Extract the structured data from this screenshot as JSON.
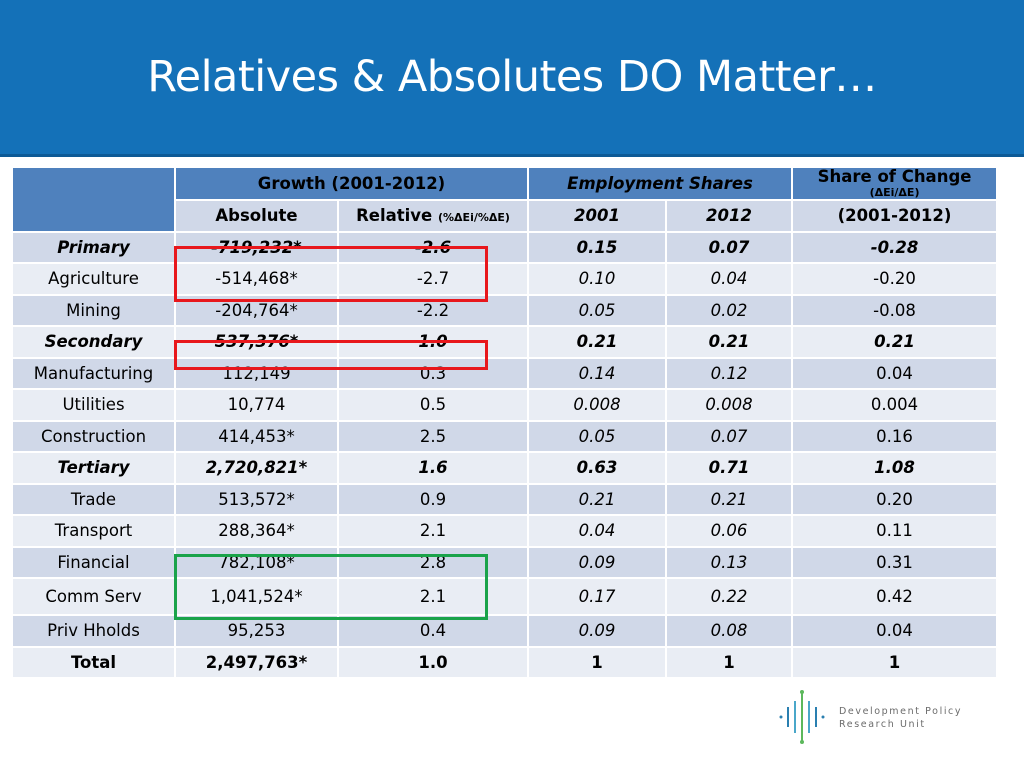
{
  "slide": {
    "title": "Relatives & Absolutes DO Matter…"
  },
  "table": {
    "header_top": {
      "growth": "Growth (2001-2012)",
      "employment_shares": "Employment Shares",
      "share_of_change": "Share of Change",
      "share_of_change_sub": "(ΔEi/ΔE)"
    },
    "header_sub": {
      "absolute": "Absolute",
      "relative": "Relative",
      "relative_formula": "(%ΔEi/%ΔE)",
      "y2001": "2001",
      "y2012": "2012",
      "period": "(2001-2012)"
    },
    "rows": [
      {
        "label": "Primary",
        "absolute": "-719,232*",
        "relative": "-2.6",
        "s2001": "0.15",
        "s2012": "0.07",
        "change": "-0.28"
      },
      {
        "label": "Agriculture",
        "absolute": "-514,468*",
        "relative": "-2.7",
        "s2001": "0.10",
        "s2012": "0.04",
        "change": "-0.20"
      },
      {
        "label": "Mining",
        "absolute": "-204,764*",
        "relative": "-2.2",
        "s2001": "0.05",
        "s2012": "0.02",
        "change": "-0.08"
      },
      {
        "label": "Secondary",
        "absolute": "537,376*",
        "relative": "1.0",
        "s2001": "0.21",
        "s2012": "0.21",
        "change": "0.21"
      },
      {
        "label": "Manufacturing",
        "absolute": "112,149",
        "relative": "0.3",
        "s2001": "0.14",
        "s2012": "0.12",
        "change": "0.04"
      },
      {
        "label": "Utilities",
        "absolute": "10,774",
        "relative": "0.5",
        "s2001": "0.008",
        "s2012": "0.008",
        "change": "0.004"
      },
      {
        "label": "Construction",
        "absolute": "414,453*",
        "relative": "2.5",
        "s2001": "0.05",
        "s2012": "0.07",
        "change": "0.16"
      },
      {
        "label": "Tertiary",
        "absolute": "2,720,821*",
        "relative": "1.6",
        "s2001": "0.63",
        "s2012": "0.71",
        "change": "1.08"
      },
      {
        "label": "Trade",
        "absolute": "513,572*",
        "relative": "0.9",
        "s2001": "0.21",
        "s2012": "0.21",
        "change": "0.20"
      },
      {
        "label": "Transport",
        "absolute": "288,364*",
        "relative": "2.1",
        "s2001": "0.04",
        "s2012": "0.06",
        "change": "0.11"
      },
      {
        "label": "Financial",
        "absolute": "782,108*",
        "relative": "2.8",
        "s2001": "0.09",
        "s2012": "0.13",
        "change": "0.31"
      },
      {
        "label": "Comm Serv",
        "absolute": "1,041,524*",
        "relative": "2.1",
        "s2001": "0.17",
        "s2012": "0.22",
        "change": "0.42"
      },
      {
        "label": "Priv Hholds",
        "absolute": "95,253",
        "relative": "0.4",
        "s2001": "0.09",
        "s2012": "0.08",
        "change": "0.04"
      },
      {
        "label": "Total",
        "absolute": "2,497,763*",
        "relative": "1.0",
        "s2001": "1",
        "s2012": "1",
        "change": "1"
      }
    ]
  },
  "logo": {
    "line1": "Development Policy",
    "line2": "Research Unit"
  },
  "colors": {
    "title_bar": "#1471b8",
    "header_dark": "#4f81bd",
    "row_dark": "#d0d8e8",
    "row_light": "#e9edf4",
    "highlight_red": "#e8171c",
    "highlight_green": "#1aa34a"
  }
}
